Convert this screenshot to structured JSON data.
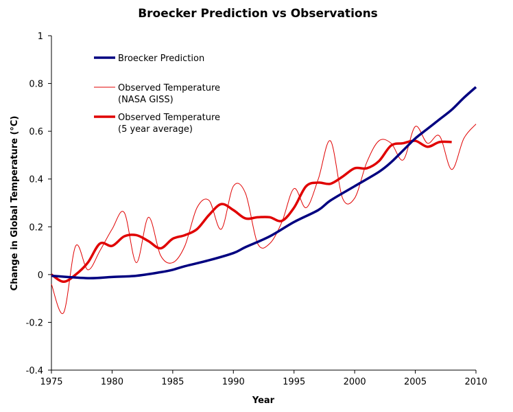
{
  "chart_data": {
    "type": "line",
    "title": "Broecker Prediction vs Observations",
    "xlabel": "Year",
    "ylabel": "Change in Global Temperature (°C)",
    "xlim": [
      1975,
      2010
    ],
    "ylim": [
      -0.4,
      1
    ],
    "xticks": [
      1975,
      1980,
      1985,
      1990,
      1995,
      2000,
      2005,
      2010
    ],
    "yticks": [
      -0.4,
      -0.2,
      0,
      0.2,
      0.4,
      0.6,
      0.8,
      1
    ],
    "grid": false,
    "legend_placement": "top-left",
    "series": [
      {
        "name": "Broecker Prediction",
        "color": "#000080",
        "x": [
          1975,
          1978,
          1980,
          1982,
          1984,
          1985,
          1986,
          1988,
          1990,
          1991,
          1993,
          1995,
          1997,
          1998,
          2000,
          2002,
          2003,
          2004,
          2005,
          2006,
          2007,
          2008,
          2009,
          2010
        ],
        "values": [
          -0.005,
          -0.015,
          -0.01,
          -0.005,
          0.01,
          0.02,
          0.035,
          0.06,
          0.09,
          0.115,
          0.16,
          0.22,
          0.27,
          0.31,
          0.37,
          0.43,
          0.47,
          0.52,
          0.57,
          0.61,
          0.65,
          0.69,
          0.74,
          0.785
        ]
      },
      {
        "name": "Observed Temperature (NASA GISS)",
        "label_lines": [
          "Observed Temperature",
          "(NASA GISS)"
        ],
        "color": "#e00000",
        "x": [
          1975,
          1976,
          1977,
          1978,
          1979,
          1980,
          1981,
          1982,
          1983,
          1984,
          1985,
          1986,
          1987,
          1988,
          1989,
          1990,
          1991,
          1992,
          1993,
          1994,
          1995,
          1996,
          1997,
          1998,
          1999,
          2000,
          2001,
          2002,
          2003,
          2004,
          2005,
          2006,
          2007,
          2008,
          2009,
          2010
        ],
        "values": [
          -0.04,
          -0.16,
          0.12,
          0.02,
          0.1,
          0.19,
          0.26,
          0.05,
          0.24,
          0.08,
          0.05,
          0.12,
          0.28,
          0.31,
          0.19,
          0.37,
          0.34,
          0.13,
          0.13,
          0.22,
          0.36,
          0.28,
          0.4,
          0.56,
          0.32,
          0.32,
          0.47,
          0.56,
          0.55,
          0.48,
          0.62,
          0.55,
          0.58,
          0.44,
          0.57,
          0.63
        ]
      },
      {
        "name": "Observed Temperature (5 year average)",
        "label_lines": [
          "Observed Temperature",
          "(5 year average)"
        ],
        "color": "#e00000",
        "x": [
          1975,
          1976,
          1977,
          1978,
          1979,
          1980,
          1981,
          1982,
          1983,
          1984,
          1985,
          1986,
          1987,
          1988,
          1989,
          1990,
          1991,
          1992,
          1993,
          1994,
          1995,
          1996,
          1997,
          1998,
          1999,
          2000,
          2001,
          2002,
          2003,
          2004,
          2005,
          2006,
          2007,
          2008
        ],
        "values": [
          0.0,
          -0.03,
          0.0,
          0.05,
          0.13,
          0.12,
          0.16,
          0.165,
          0.14,
          0.11,
          0.15,
          0.165,
          0.19,
          0.25,
          0.295,
          0.27,
          0.235,
          0.24,
          0.24,
          0.225,
          0.28,
          0.37,
          0.385,
          0.38,
          0.41,
          0.445,
          0.445,
          0.475,
          0.54,
          0.55,
          0.56,
          0.535,
          0.555,
          0.555
        ]
      }
    ]
  }
}
